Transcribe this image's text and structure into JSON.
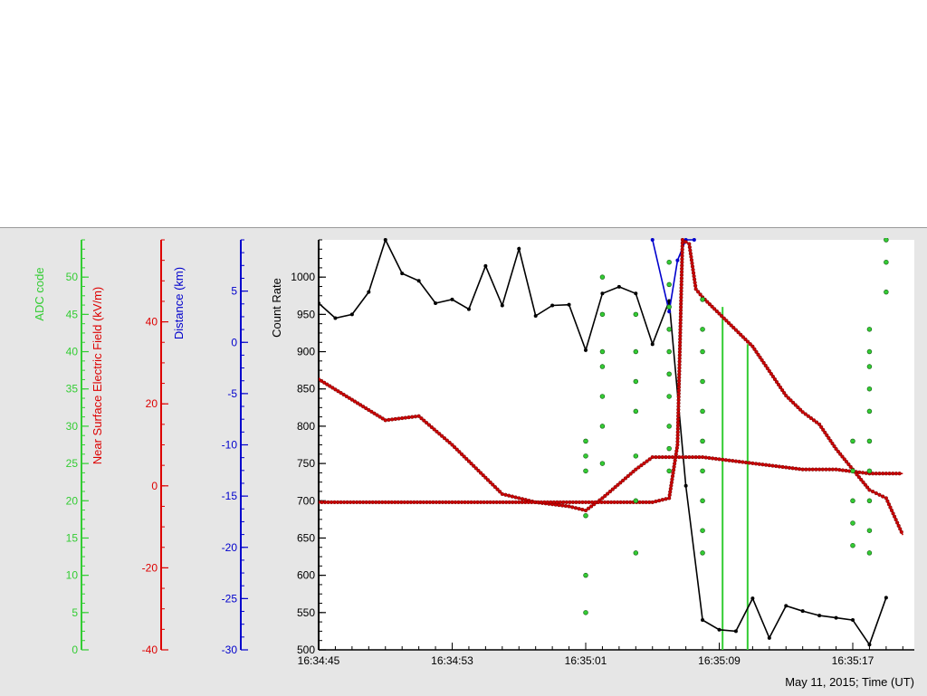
{
  "chart_data": {
    "type": "line",
    "time_axis": {
      "tick_labels": [
        "16:34:45",
        "16:34:53",
        "16:35:01",
        "16:35:09",
        "16:35:17"
      ],
      "label": "May 11, 2015; Time (UT)",
      "range": [
        "16:34:45",
        "16:35:20"
      ]
    },
    "axes": {
      "adc": {
        "label": "ADC code",
        "color": "#33cc33",
        "ticks": [
          0,
          5,
          10,
          15,
          20,
          25,
          30,
          35,
          40,
          45,
          50
        ],
        "range": [
          0,
          55
        ]
      },
      "efield": {
        "label": "Near Surface Electric Field (kV/m)",
        "color": "#dd0000",
        "ticks": [
          -40,
          -20,
          0,
          20,
          40
        ],
        "range": [
          -40,
          60
        ]
      },
      "distance": {
        "label": "Distance (km)",
        "color": "#0000cc",
        "ticks": [
          -30,
          -25,
          -20,
          -15,
          -10,
          -5,
          0,
          5
        ],
        "range": [
          -30,
          10
        ]
      },
      "count": {
        "label": "Count Rate",
        "color": "#000000",
        "ticks": [
          500,
          550,
          600,
          650,
          700,
          750,
          800,
          850,
          900,
          950,
          1000
        ],
        "range": [
          500,
          1050
        ]
      }
    },
    "series": [
      {
        "axis": "count",
        "color": "#000000",
        "x": [
          "16:34:45",
          "16:34:46",
          "16:34:47",
          "16:34:48",
          "16:34:49",
          "16:34:50",
          "16:34:51",
          "16:34:52",
          "16:34:53",
          "16:34:54",
          "16:34:55",
          "16:34:56",
          "16:34:57",
          "16:34:58",
          "16:34:59",
          "16:35:00",
          "16:35:01",
          "16:35:02",
          "16:35:03",
          "16:35:04",
          "16:35:05",
          "16:35:06",
          "16:35:07",
          "16:35:08",
          "16:35:09",
          "16:35:10",
          "16:35:11",
          "16:35:12",
          "16:35:13",
          "16:35:14",
          "16:35:15",
          "16:35:16",
          "16:35:17",
          "16:35:18",
          "16:35:19"
        ],
        "values": [
          965,
          945,
          950,
          980,
          1050,
          1005,
          995,
          965,
          970,
          957,
          1015,
          962,
          1038,
          948,
          962,
          963,
          902,
          978,
          987,
          978,
          910,
          968,
          720,
          540,
          527,
          525,
          569,
          516,
          559,
          552,
          546,
          543,
          540,
          507,
          570
        ]
      },
      {
        "axis": "distance",
        "color": "#0000cc",
        "x": [
          "16:35:05",
          "16:35:06",
          "16:35:06.5",
          "16:35:07",
          "16:35:07.5"
        ],
        "values": [
          10,
          3,
          8,
          10,
          10
        ]
      },
      {
        "axis": "efield",
        "color": "#cc0000",
        "name": "",
        "x": [
          "16:34:45",
          "16:34:47",
          "16:34:49",
          "16:34:51",
          "16:34:53",
          "16:34:54",
          "16:34:56",
          "16:34:58",
          "16:35:00",
          "16:35:01",
          "16:35:02",
          "16:35:04",
          "16:35:05",
          "16:35:06",
          "16:35:08",
          "16:35:10",
          "16:35:12",
          "16:35:14",
          "16:35:16",
          "16:35:18",
          "16:35:20"
        ],
        "values": [
          26,
          21,
          16,
          17,
          10,
          6,
          -2,
          -4,
          -5,
          -6,
          -3,
          4,
          7,
          7,
          7,
          6,
          5,
          4,
          4,
          3,
          3
        ]
      },
      {
        "axis": "efield",
        "color": "#cc0000",
        "x": [
          "16:34:45",
          "16:35:05",
          "16:35:06",
          "16:35:06.5",
          "16:35:06.8",
          "16:35:07.2",
          "16:35:07.6",
          "16:35:08",
          "16:35:09",
          "16:35:10",
          "16:35:11",
          "16:35:12",
          "16:35:13",
          "16:35:14",
          "16:35:15",
          "16:35:16",
          "16:35:17",
          "16:35:18",
          "16:35:19",
          "16:35:20"
        ],
        "values": [
          -4,
          -4,
          -3,
          10,
          60,
          59,
          48,
          46,
          42,
          38,
          34,
          28,
          22,
          18,
          15,
          9,
          4,
          -1,
          -3,
          -12
        ]
      },
      {
        "axis": "adc",
        "color": "#33cc33",
        "type": "scatter",
        "x": [
          16,
          16,
          16,
          16,
          16,
          16,
          17,
          17,
          17,
          17,
          17,
          17,
          17,
          19,
          19,
          19,
          19,
          19,
          19,
          19,
          21,
          21,
          21,
          21,
          21,
          21,
          21,
          21,
          21,
          21,
          23,
          23,
          23,
          23,
          23,
          23,
          23,
          23,
          23,
          23,
          33,
          33,
          33,
          33,
          33,
          33,
          33,
          33,
          33,
          33,
          34,
          34,
          34,
          36,
          36,
          36,
          36,
          36,
          36,
          36,
          36,
          36,
          36,
          36,
          37.5,
          37.5,
          37.5,
          37.5,
          37.5,
          37.5,
          37.5,
          37.5,
          37.5,
          37.5,
          37.5,
          32,
          32,
          32,
          32,
          32
        ],
        "values": [
          28,
          26,
          24,
          18,
          10,
          5,
          50,
          45,
          40,
          38,
          34,
          30,
          25,
          45,
          40,
          36,
          32,
          26,
          20,
          13,
          52,
          49,
          46,
          43,
          40,
          37,
          34,
          30,
          27,
          24,
          47,
          43,
          40,
          36,
          32,
          28,
          24,
          20,
          16,
          13,
          43,
          40,
          38,
          35,
          32,
          28,
          24,
          20,
          16,
          13,
          55,
          52,
          48,
          46,
          43,
          41,
          38,
          36,
          33,
          30,
          27,
          24,
          21,
          18,
          41,
          38,
          35,
          32,
          29,
          26,
          23,
          20,
          16,
          13,
          9,
          28,
          24,
          20,
          17,
          14
        ]
      }
    ],
    "vertical_lines": [
      {
        "axis": "adc",
        "color": "#33cc33",
        "x": "16:35:09.2",
        "from": 0,
        "to": 46
      },
      {
        "axis": "adc",
        "color": "#33cc33",
        "x": "16:35:10.7",
        "from": 0,
        "to": 41
      }
    ]
  }
}
